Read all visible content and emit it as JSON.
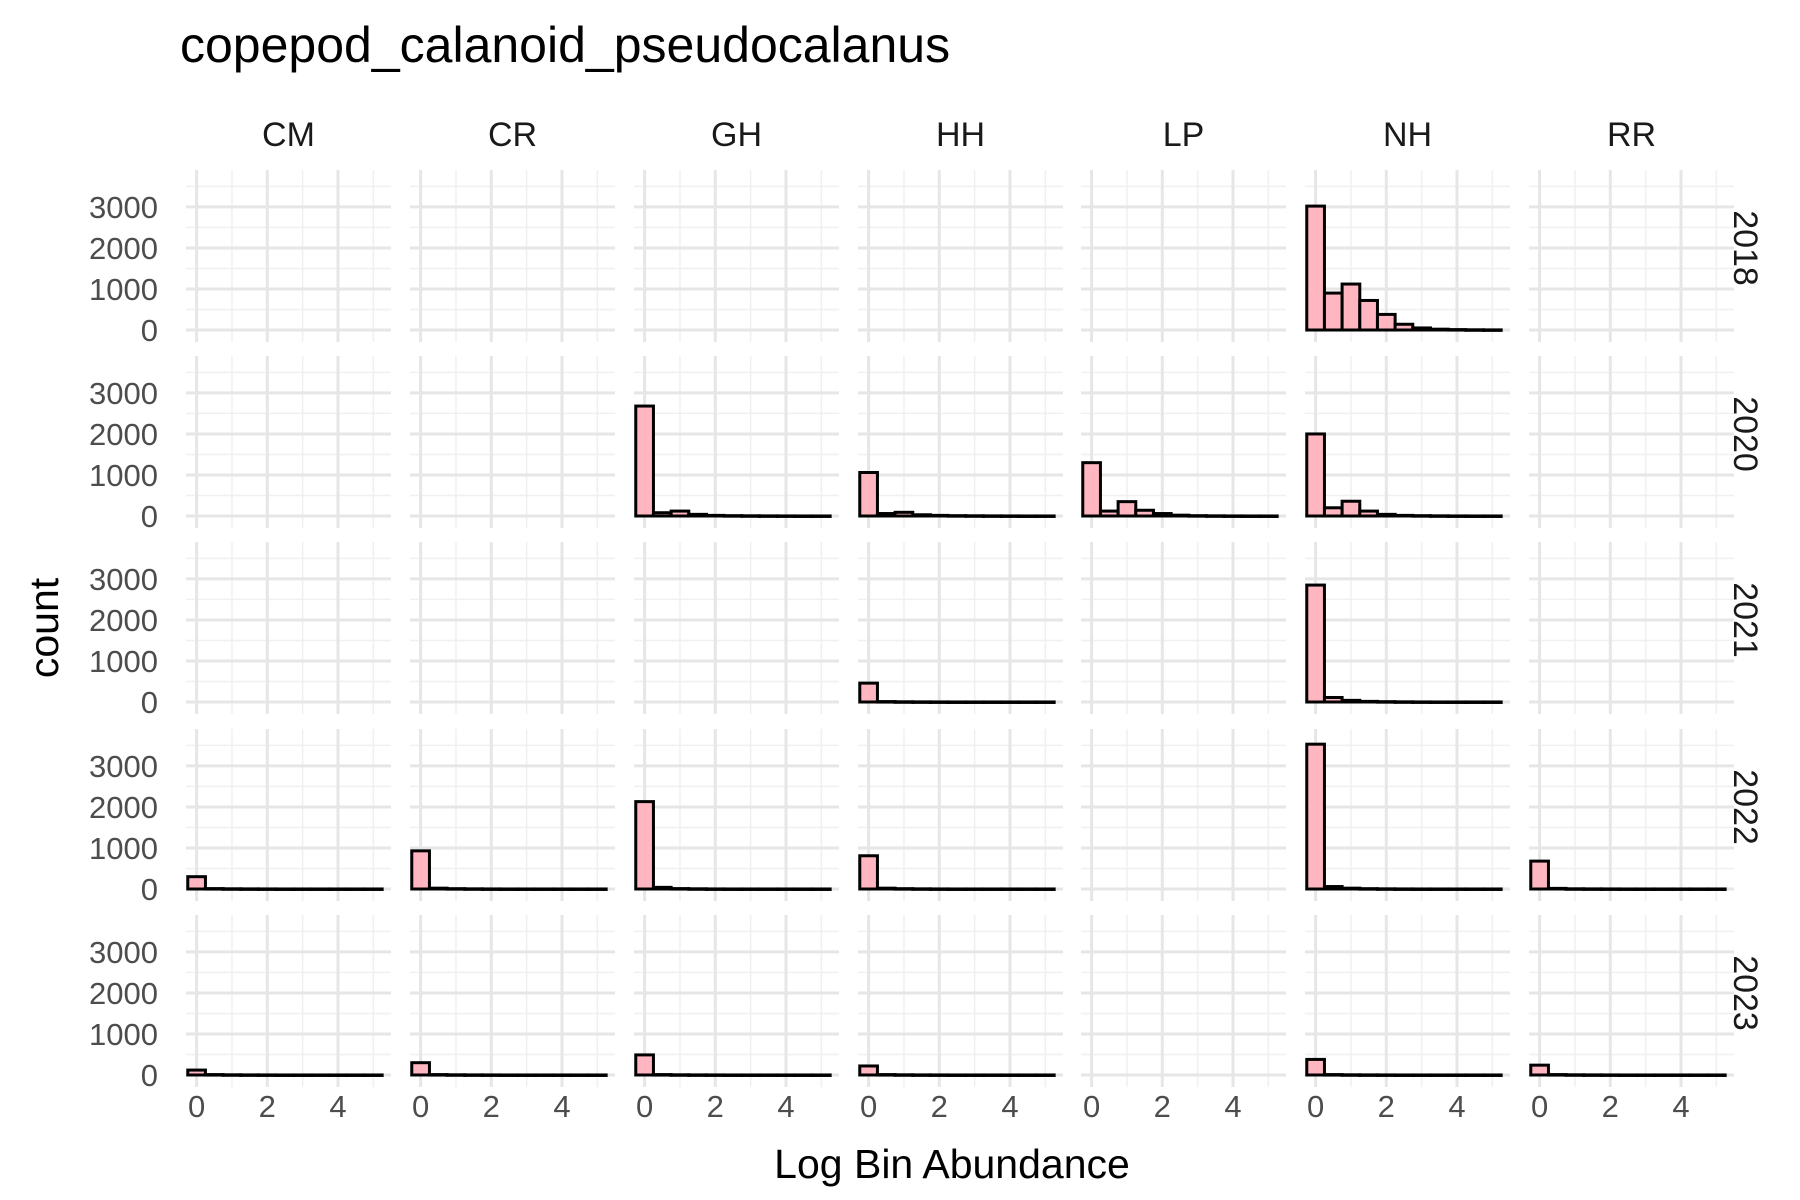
{
  "chart_data": {
    "type": "bar",
    "subtype": "faceted histogram",
    "title": "copepod_calanoid_pseudocalanus",
    "xlabel": "Log Bin Abundance",
    "ylabel": "count",
    "columns": [
      "CM",
      "CR",
      "GH",
      "HH",
      "LP",
      "NH",
      "RR"
    ],
    "rows": [
      "2018",
      "2020",
      "2021",
      "2022",
      "2023"
    ],
    "xlim": [
      -0.3,
      5.5
    ],
    "ylim": [
      0,
      3600
    ],
    "x_ticks": [
      0,
      2,
      4
    ],
    "y_ticks": [
      0,
      1000,
      2000,
      3000
    ],
    "bin_width": 0.5,
    "bin_starts": [
      -0.25,
      0.25,
      0.75,
      1.25,
      1.75,
      2.25,
      2.75,
      3.25,
      3.75,
      4.25,
      4.75
    ],
    "bar_fill": "#ffb6c1",
    "bar_outline": "#000000",
    "grid": true,
    "panels": [
      {
        "row": "2018",
        "col": "CM",
        "counts": null
      },
      {
        "row": "2018",
        "col": "CR",
        "counts": null
      },
      {
        "row": "2018",
        "col": "GH",
        "counts": null
      },
      {
        "row": "2018",
        "col": "HH",
        "counts": null
      },
      {
        "row": "2018",
        "col": "LP",
        "counts": null
      },
      {
        "row": "2018",
        "col": "NH",
        "counts": [
          3020,
          900,
          1120,
          720,
          380,
          140,
          50,
          20,
          10,
          5,
          3
        ]
      },
      {
        "row": "2018",
        "col": "RR",
        "counts": null
      },
      {
        "row": "2020",
        "col": "CM",
        "counts": null
      },
      {
        "row": "2020",
        "col": "CR",
        "counts": null
      },
      {
        "row": "2020",
        "col": "GH",
        "counts": [
          2680,
          80,
          120,
          40,
          15,
          8,
          5,
          3,
          2,
          1,
          1
        ]
      },
      {
        "row": "2020",
        "col": "HH",
        "counts": [
          1060,
          60,
          90,
          30,
          15,
          8,
          5,
          3,
          2,
          1,
          1
        ]
      },
      {
        "row": "2020",
        "col": "LP",
        "counts": [
          1300,
          120,
          350,
          140,
          60,
          20,
          8,
          4,
          2,
          1,
          1
        ]
      },
      {
        "row": "2020",
        "col": "NH",
        "counts": [
          2000,
          200,
          360,
          120,
          40,
          15,
          8,
          4,
          2,
          1,
          1
        ]
      },
      {
        "row": "2020",
        "col": "RR",
        "counts": null
      },
      {
        "row": "2021",
        "col": "CM",
        "counts": null
      },
      {
        "row": "2021",
        "col": "CR",
        "counts": null
      },
      {
        "row": "2021",
        "col": "GH",
        "counts": null
      },
      {
        "row": "2021",
        "col": "HH",
        "counts": [
          460,
          10,
          5,
          3,
          2,
          1,
          1,
          1,
          1,
          1,
          1
        ]
      },
      {
        "row": "2021",
        "col": "LP",
        "counts": null
      },
      {
        "row": "2021",
        "col": "NH",
        "counts": [
          2850,
          110,
          40,
          15,
          8,
          4,
          2,
          1,
          1,
          1,
          1
        ]
      },
      {
        "row": "2021",
        "col": "RR",
        "counts": null
      },
      {
        "row": "2022",
        "col": "CM",
        "counts": [
          300,
          10,
          5,
          3,
          2,
          1,
          1,
          1,
          1,
          1,
          1
        ]
      },
      {
        "row": "2022",
        "col": "CR",
        "counts": [
          930,
          20,
          8,
          4,
          2,
          1,
          1,
          1,
          1,
          1,
          1
        ]
      },
      {
        "row": "2022",
        "col": "GH",
        "counts": [
          2130,
          40,
          10,
          5,
          2,
          1,
          1,
          1,
          1,
          1,
          1
        ]
      },
      {
        "row": "2022",
        "col": "HH",
        "counts": [
          810,
          20,
          8,
          4,
          2,
          1,
          1,
          1,
          1,
          1,
          1
        ]
      },
      {
        "row": "2022",
        "col": "LP",
        "counts": null
      },
      {
        "row": "2022",
        "col": "NH",
        "counts": [
          3530,
          60,
          20,
          8,
          4,
          2,
          1,
          1,
          1,
          1,
          1
        ]
      },
      {
        "row": "2022",
        "col": "RR",
        "counts": [
          680,
          15,
          5,
          3,
          2,
          1,
          1,
          1,
          1,
          1,
          1
        ]
      },
      {
        "row": "2023",
        "col": "CM",
        "counts": [
          120,
          10,
          5,
          3,
          2,
          1,
          1,
          1,
          1,
          1,
          1
        ]
      },
      {
        "row": "2023",
        "col": "CR",
        "counts": [
          300,
          10,
          5,
          3,
          2,
          1,
          1,
          1,
          1,
          1,
          1
        ]
      },
      {
        "row": "2023",
        "col": "GH",
        "counts": [
          490,
          10,
          5,
          3,
          2,
          1,
          1,
          1,
          1,
          1,
          1
        ]
      },
      {
        "row": "2023",
        "col": "HH",
        "counts": [
          220,
          10,
          5,
          3,
          2,
          1,
          1,
          1,
          1,
          1,
          1
        ]
      },
      {
        "row": "2023",
        "col": "LP",
        "counts": null
      },
      {
        "row": "2023",
        "col": "NH",
        "counts": [
          380,
          10,
          5,
          3,
          2,
          1,
          1,
          1,
          1,
          1,
          1
        ]
      },
      {
        "row": "2023",
        "col": "RR",
        "counts": [
          240,
          10,
          5,
          3,
          2,
          1,
          1,
          1,
          1,
          1,
          1
        ]
      }
    ]
  }
}
